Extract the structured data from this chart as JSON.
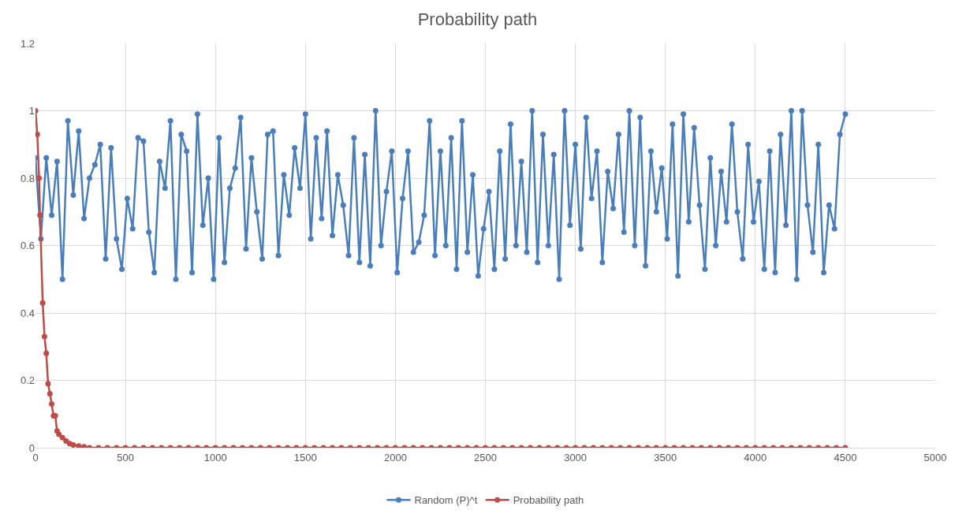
{
  "chart_data": {
    "type": "line",
    "title": "Probability path",
    "xlim": [
      0,
      5000
    ],
    "xticks": [
      0,
      500,
      1000,
      1500,
      2000,
      2500,
      3000,
      3500,
      4000,
      4500,
      5000
    ],
    "ylim": [
      0,
      1.2
    ],
    "yticks": [
      0,
      0.2,
      0.4,
      0.6,
      0.8,
      1,
      1.2
    ],
    "grid": true,
    "legend": "bottom",
    "marker": "circle",
    "line_style": "solid",
    "series": [
      {
        "name": "Random (P)^t",
        "color": "#4a7ebb",
        "x": [
          0,
          30,
          60,
          90,
          120,
          150,
          180,
          210,
          240,
          270,
          300,
          330,
          360,
          390,
          420,
          450,
          480,
          510,
          540,
          570,
          600,
          630,
          660,
          690,
          720,
          750,
          780,
          810,
          840,
          870,
          900,
          930,
          960,
          990,
          1020,
          1050,
          1080,
          1110,
          1140,
          1170,
          1200,
          1230,
          1260,
          1290,
          1320,
          1350,
          1380,
          1410,
          1440,
          1470,
          1500,
          1530,
          1560,
          1590,
          1620,
          1650,
          1680,
          1710,
          1740,
          1770,
          1800,
          1830,
          1860,
          1890,
          1920,
          1950,
          1980,
          2010,
          2040,
          2070,
          2100,
          2130,
          2160,
          2190,
          2220,
          2250,
          2280,
          2310,
          2340,
          2370,
          2400,
          2430,
          2460,
          2490,
          2520,
          2550,
          2580,
          2610,
          2640,
          2670,
          2700,
          2730,
          2760,
          2790,
          2820,
          2850,
          2880,
          2910,
          2940,
          2970,
          3000,
          3030,
          3060,
          3090,
          3120,
          3150,
          3180,
          3210,
          3240,
          3270,
          3300,
          3330,
          3360,
          3390,
          3420,
          3450,
          3480,
          3510,
          3540,
          3570,
          3600,
          3630,
          3660,
          3690,
          3720,
          3750,
          3780,
          3810,
          3840,
          3870,
          3900,
          3930,
          3960,
          3990,
          4020,
          4050,
          4080,
          4110,
          4140,
          4170,
          4200,
          4230,
          4260,
          4290,
          4320,
          4350,
          4380,
          4410,
          4440,
          4470,
          4500
        ],
        "values": [
          0.86,
          0.62,
          0.86,
          0.69,
          0.85,
          0.5,
          0.97,
          0.75,
          0.94,
          0.68,
          0.8,
          0.84,
          0.9,
          0.56,
          0.89,
          0.62,
          0.53,
          0.74,
          0.65,
          0.92,
          0.91,
          0.64,
          0.52,
          0.85,
          0.77,
          0.97,
          0.5,
          0.93,
          0.88,
          0.52,
          0.99,
          0.66,
          0.8,
          0.5,
          0.92,
          0.55,
          0.77,
          0.83,
          0.98,
          0.59,
          0.86,
          0.7,
          0.56,
          0.93,
          0.94,
          0.57,
          0.81,
          0.69,
          0.89,
          0.77,
          0.99,
          0.62,
          0.92,
          0.68,
          0.94,
          0.63,
          0.81,
          0.72,
          0.57,
          0.92,
          0.55,
          0.87,
          0.54,
          1.0,
          0.6,
          0.76,
          0.88,
          0.52,
          0.74,
          0.88,
          0.58,
          0.61,
          0.69,
          0.97,
          0.57,
          0.88,
          0.6,
          0.92,
          0.53,
          0.97,
          0.58,
          0.81,
          0.51,
          0.65,
          0.76,
          0.53,
          0.88,
          0.56,
          0.96,
          0.6,
          0.85,
          0.58,
          1.0,
          0.55,
          0.93,
          0.6,
          0.87,
          0.5,
          1.0,
          0.66,
          0.9,
          0.59,
          0.98,
          0.74,
          0.88,
          0.55,
          0.82,
          0.71,
          0.93,
          0.64,
          1.0,
          0.6,
          0.98,
          0.54,
          0.88,
          0.7,
          0.83,
          0.62,
          0.96,
          0.51,
          0.99,
          0.67,
          0.95,
          0.72,
          0.53,
          0.86,
          0.6,
          0.82,
          0.67,
          0.96,
          0.7,
          0.56,
          0.9,
          0.67,
          0.79,
          0.53,
          0.88,
          0.52,
          0.93,
          0.66,
          1.0,
          0.5,
          1.0,
          0.72,
          0.58,
          0.9,
          0.52,
          0.72,
          0.65,
          0.93,
          0.99
        ]
      },
      {
        "name": "Probability path",
        "color": "#be4b48",
        "x": [
          0,
          10,
          20,
          25,
          40,
          50,
          60,
          70,
          80,
          90,
          100,
          110,
          120,
          130,
          150,
          170,
          190,
          210,
          240,
          270,
          300,
          350,
          400,
          450,
          500,
          550,
          600,
          650,
          700,
          750,
          800,
          850,
          900,
          950,
          1000,
          1050,
          1100,
          1150,
          1200,
          1250,
          1300,
          1350,
          1400,
          1450,
          1500,
          1550,
          1600,
          1650,
          1700,
          1750,
          1800,
          1850,
          1900,
          1950,
          2000,
          2050,
          2100,
          2150,
          2200,
          2250,
          2300,
          2350,
          2400,
          2450,
          2500,
          2550,
          2600,
          2650,
          2700,
          2750,
          2800,
          2850,
          2900,
          2950,
          3000,
          3050,
          3100,
          3150,
          3200,
          3250,
          3300,
          3350,
          3400,
          3450,
          3500,
          3550,
          3600,
          3650,
          3700,
          3750,
          3800,
          3850,
          3900,
          3950,
          4000,
          4050,
          4100,
          4150,
          4200,
          4250,
          4300,
          4350,
          4400,
          4450,
          4500
        ],
        "values": [
          1.0,
          0.93,
          0.8,
          0.69,
          0.43,
          0.33,
          0.28,
          0.19,
          0.16,
          0.13,
          0.095,
          0.095,
          0.05,
          0.04,
          0.03,
          0.02,
          0.012,
          0.008,
          0.005,
          0.003,
          0,
          0,
          0,
          0,
          0,
          0,
          0,
          0,
          0,
          0,
          0,
          0,
          0,
          0,
          0,
          0,
          0,
          0,
          0,
          0,
          0,
          0,
          0,
          0,
          0,
          0,
          0,
          0,
          0,
          0,
          0,
          0,
          0,
          0,
          0,
          0,
          0,
          0,
          0,
          0,
          0,
          0,
          0,
          0,
          0,
          0,
          0,
          0,
          0,
          0,
          0,
          0,
          0,
          0,
          0,
          0,
          0,
          0,
          0,
          0,
          0,
          0,
          0,
          0,
          0,
          0,
          0,
          0,
          0,
          0,
          0,
          0,
          0,
          0,
          0,
          0,
          0,
          0,
          0,
          0,
          0,
          0,
          0,
          0,
          0
        ]
      }
    ]
  }
}
